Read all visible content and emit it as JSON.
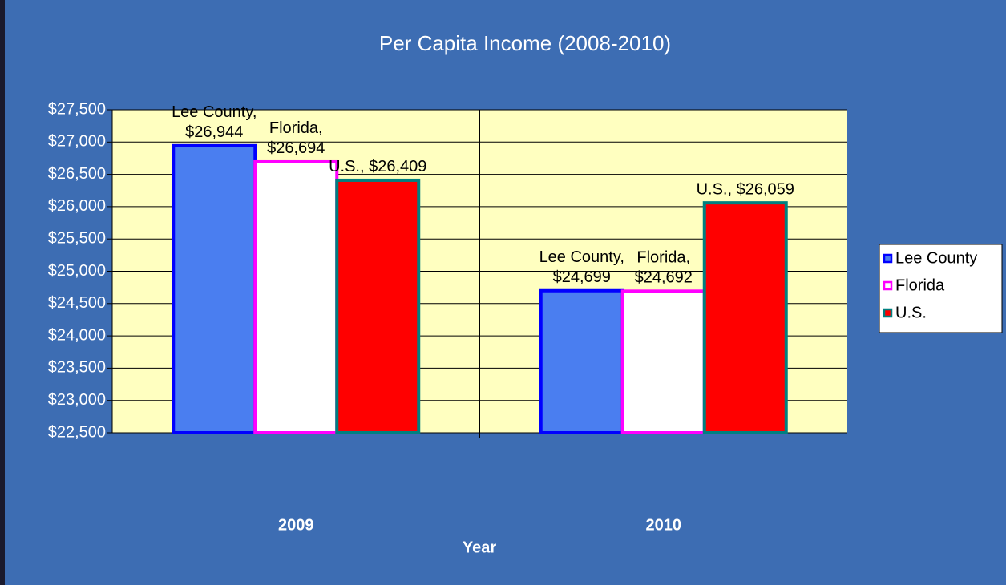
{
  "chart_data": {
    "type": "bar",
    "title": "Per Capita Income (2008-2010)",
    "x_label": "Year",
    "categories": [
      "2009",
      "2010"
    ],
    "series": [
      {
        "name": "Lee County",
        "color": "#4a7ef0",
        "edge": "#0000ff",
        "values": [
          26944,
          24699
        ],
        "value_labels": [
          "Lee County, $26,944",
          "Lee County, $24,699"
        ]
      },
      {
        "name": "Florida",
        "color": "#ffffff",
        "edge": "#ff00ff",
        "values": [
          26694,
          24692
        ],
        "value_labels": [
          "Florida, $26,694",
          "Florida, $24,692"
        ]
      },
      {
        "name": "U.S.",
        "color": "#ff0000",
        "edge": "#008080",
        "values": [
          26409,
          26059
        ],
        "value_labels": [
          "U.S., $26,409",
          "U.S., $26,059"
        ]
      }
    ],
    "ylim": [
      22500,
      27500
    ],
    "yticks": [
      {
        "value": 22500,
        "label": "$22,500"
      },
      {
        "value": 23000,
        "label": "$23,000"
      },
      {
        "value": 23500,
        "label": "$23,500"
      },
      {
        "value": 24000,
        "label": "$24,000"
      },
      {
        "value": 24500,
        "label": "$24,500"
      },
      {
        "value": 25000,
        "label": "$25,000"
      },
      {
        "value": 25500,
        "label": "$25,500"
      },
      {
        "value": 26000,
        "label": "$26,000"
      },
      {
        "value": 26500,
        "label": "$26,500"
      },
      {
        "value": 27000,
        "label": "$27,000"
      },
      {
        "value": 27500,
        "label": "$27,500"
      }
    ],
    "grid": true,
    "legend": "right"
  }
}
